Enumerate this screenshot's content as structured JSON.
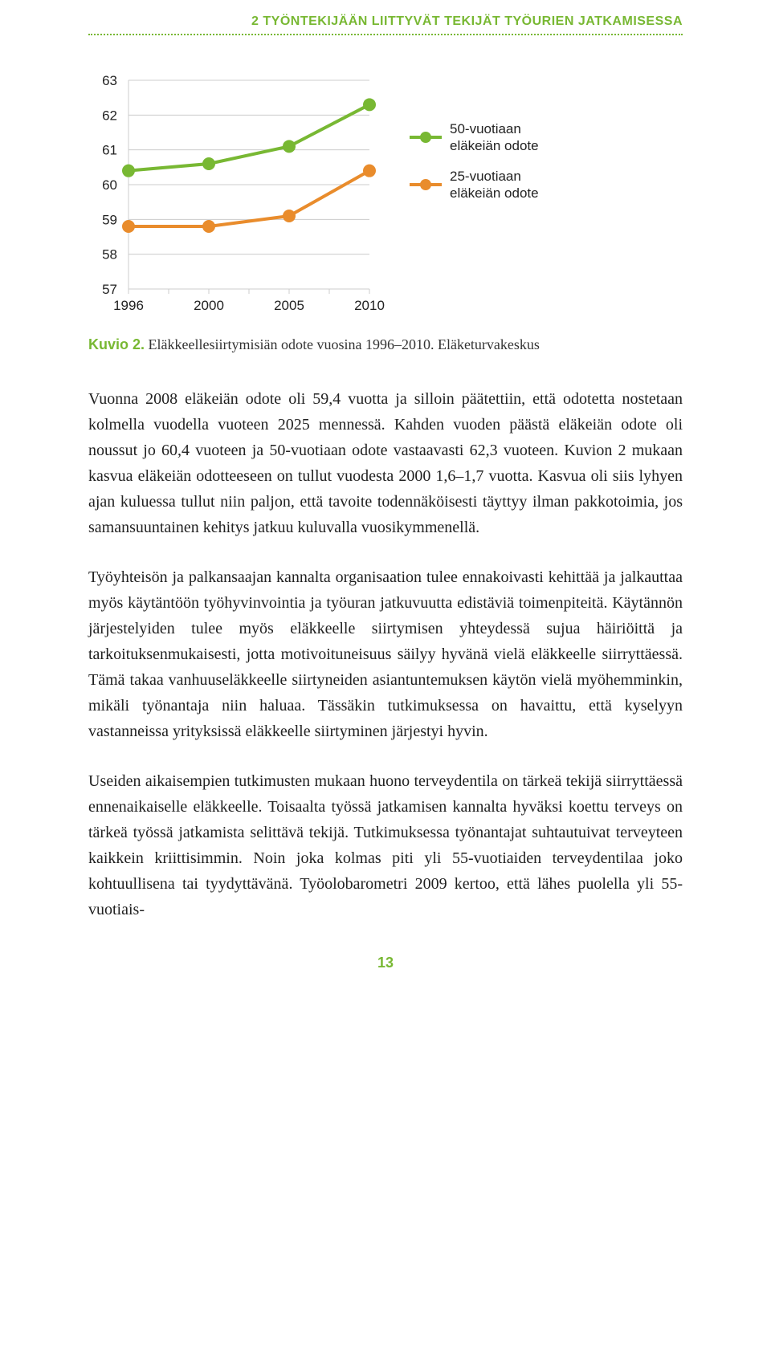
{
  "header": "2 TYÖNTEKIJÄÄN LIITTYVÄT TEKIJÄT TYÖURIEN JATKAMISESSA",
  "chart": {
    "type": "line",
    "y_ticks": [
      57,
      58,
      59,
      60,
      61,
      62,
      63
    ],
    "x_ticks": [
      "1996",
      "2000",
      "2005",
      "2010"
    ],
    "ylim_min": 57,
    "ylim_max": 63,
    "series": [
      {
        "key": "s50",
        "label_line1": "50-vuotiaan",
        "label_line2": "eläkeiän odote",
        "color": "#78b833",
        "marker_fill": "#78b833",
        "line_width": 4,
        "values": [
          60.4,
          60.6,
          61.1,
          62.3
        ]
      },
      {
        "key": "s25",
        "label_line1": "25-vuotiaan",
        "label_line2": "eläkeiän odote",
        "color": "#e98c2c",
        "marker_fill": "#e98c2c",
        "line_width": 4,
        "values": [
          58.8,
          58.8,
          59.1,
          60.4
        ]
      }
    ],
    "axis_font_size": 17,
    "axis_color": "#222222",
    "grid_color": "#cccccc",
    "background_color": "#ffffff"
  },
  "caption_label": "Kuvio 2.",
  "caption_text": "Eläkkeellesiirtymisiän odote vuosina 1996–2010. Eläketurvakeskus",
  "paragraphs": [
    "Vuonna 2008 eläkeiän odote oli 59,4 vuotta ja silloin päätettiin, että odotetta nostetaan kolmella vuodella vuoteen 2025 mennessä. Kahden vuoden päästä eläkeiän odote oli noussut jo 60,4 vuoteen ja 50-vuotiaan odote vastaavasti 62,3 vuoteen. Kuvion 2 mukaan kasvua eläkeiän odotteeseen on tullut vuodesta 2000 1,6–1,7 vuotta. Kasvua oli siis lyhyen ajan kuluessa tullut niin paljon, että tavoite todennäköisesti täyttyy ilman pakkotoimia, jos samansuuntainen kehitys jatkuu kuluvalla vuosikymmenellä.",
    "Työyhteisön ja palkansaajan kannalta organisaation tulee ennakoivasti kehittää ja jalkauttaa myös käytäntöön työhyvinvointia ja työuran jatkuvuutta edistäviä toimenpiteitä. Käytännön järjestelyiden tulee myös eläkkeelle siirtymisen yhteydessä sujua häiriöittä ja tarkoituksenmukaisesti, jotta motivoituneisuus säilyy hyvänä vielä eläkkeelle siirryttäessä. Tämä takaa vanhuuseläkkeelle siirtyneiden asiantuntemuksen käytön vielä myöhemminkin, mikäli työnantaja niin haluaa. Tässäkin tutkimuksessa on havaittu, että kyselyyn vastanneissa yrityksissä eläkkeelle siirtyminen järjestyi hyvin.",
    "Useiden aikaisempien tutkimusten mukaan huono terveydentila on tärkeä tekijä siirryttäessä ennenaikaiselle eläkkeelle. Toisaalta työssä jatkamisen kannalta hyväksi koettu terveys on tärkeä työssä jatkamista selittävä tekijä. Tutkimuksessa työnantajat suhtautuivat terveyteen kaikkein kriittisimmin. Noin joka kolmas piti yli 55-vuotiaiden terveydentilaa joko kohtuullisena tai tyydyttävänä. Työolobarometri 2009 kertoo, että lähes puolella yli 55-vuotiais-"
  ],
  "page_number": "13"
}
